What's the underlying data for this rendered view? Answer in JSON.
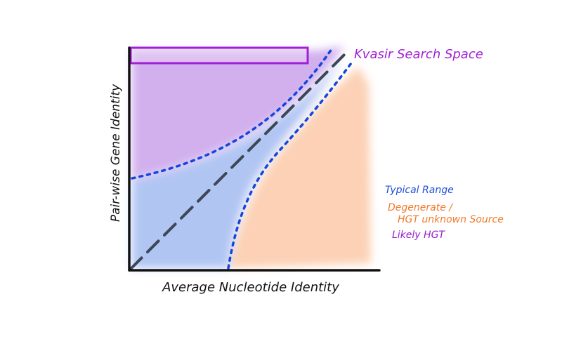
{
  "diagram": {
    "xlabel": "Average Nucleotide Identity",
    "ylabel": "Pair-wise Gene Identity",
    "search_space_label": "Kvasir Search Space",
    "legend": [
      {
        "label": "Typical Range",
        "color": "#1f4fd8"
      },
      {
        "label": "Degenerate /",
        "color": "#f07a2a"
      },
      {
        "label": "HGT unknown Source",
        "color": "#f07a2a"
      },
      {
        "label": "Likely HGT",
        "color": "#9a1ccf"
      }
    ],
    "colors": {
      "purple_region": "#c9a3ea",
      "blue_region": "#a9bff2",
      "orange_region": "#fcc9a9",
      "search_box": "#a21fd6",
      "boundary": "#1246e0",
      "diagonal": "#3c4657",
      "axis": "#111111"
    }
  }
}
